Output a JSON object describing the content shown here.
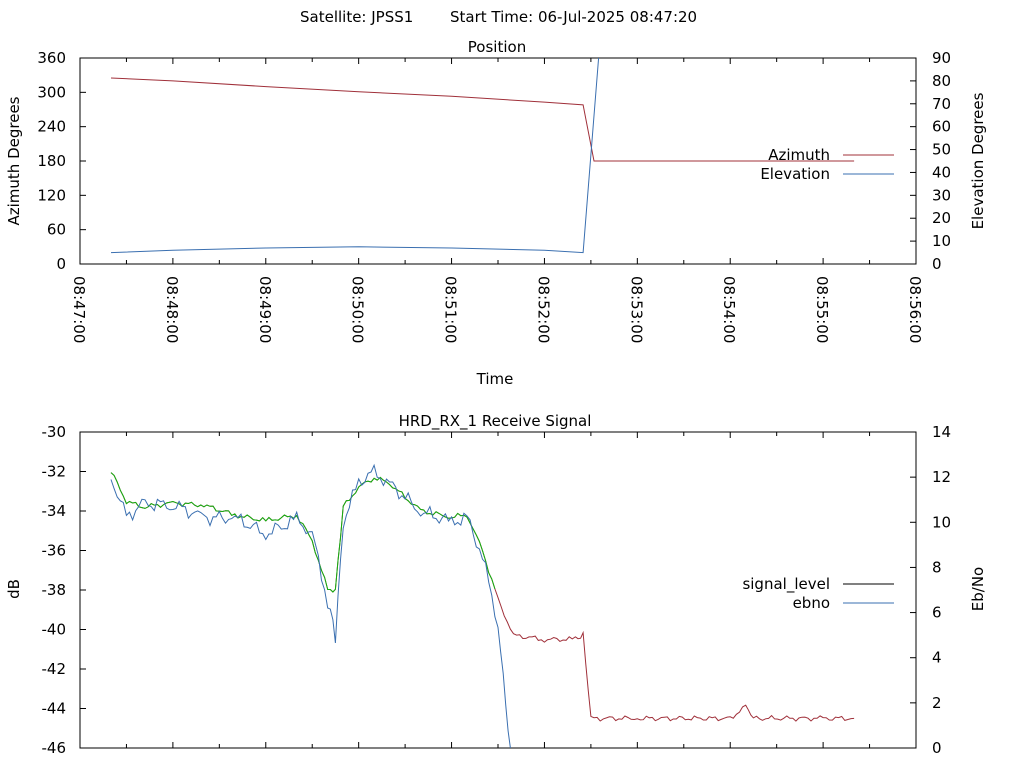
{
  "header": {
    "satellite_label": "Satellite: JPSS1",
    "start_label": "Start Time: 06-Jul-2025 08:47:20"
  },
  "colors": {
    "azimuth": "#a0303a",
    "elevation": "#3a6fb0",
    "signal_level": "#000000",
    "ebno": "#3a6fb0",
    "signal_drawn_green": "#10b010",
    "signal_drawn_red": "#a0303a"
  },
  "chart_data": [
    {
      "type": "line",
      "title": "Position",
      "xlabel": "Time",
      "ylabel": "Azimuth Degrees",
      "y2label": "Elevation Degrees",
      "xlim": [
        "08:47:00",
        "08:56:00"
      ],
      "ylim": [
        0,
        360
      ],
      "y2lim": [
        0,
        90
      ],
      "x_ticks": [
        "08:47:00",
        "08:48:00",
        "08:49:00",
        "08:50:00",
        "08:51:00",
        "08:52:00",
        "08:53:00",
        "08:54:00",
        "08:55:00",
        "08:56:00"
      ],
      "y_ticks": [
        0,
        60,
        120,
        180,
        240,
        300,
        360
      ],
      "y2_ticks": [
        0,
        10,
        20,
        30,
        40,
        50,
        60,
        70,
        80,
        90
      ],
      "legend_position": "right",
      "grid": false,
      "series": [
        {
          "name": "Azimuth",
          "axis": "y",
          "points": [
            [
              "08:47:20",
              325
            ],
            [
              "08:48:00",
              320
            ],
            [
              "08:49:00",
              310
            ],
            [
              "08:50:00",
              301
            ],
            [
              "08:51:00",
              293
            ],
            [
              "08:52:00",
              283
            ],
            [
              "08:52:25",
              278
            ],
            [
              "08:52:32",
              180
            ],
            [
              "08:55:20",
              180
            ]
          ]
        },
        {
          "name": "Elevation",
          "axis": "y2",
          "points": [
            [
              "08:47:20",
              5
            ],
            [
              "08:48:00",
              6
            ],
            [
              "08:49:00",
              7
            ],
            [
              "08:50:00",
              7.5
            ],
            [
              "08:51:00",
              7
            ],
            [
              "08:52:00",
              6
            ],
            [
              "08:52:25",
              5
            ],
            [
              "08:52:35",
              90
            ]
          ]
        }
      ]
    },
    {
      "type": "line",
      "title": "HRD_RX_1 Receive Signal",
      "ylabel": "dB",
      "y2label": "Eb/No",
      "xlim": [
        "08:47:00",
        "08:56:00"
      ],
      "ylim": [
        -46,
        -30
      ],
      "y2lim": [
        0,
        14
      ],
      "y_ticks": [
        -46,
        -44,
        -42,
        -40,
        -38,
        -36,
        -34,
        -32,
        -30
      ],
      "y2_ticks": [
        0,
        2,
        4,
        6,
        8,
        10,
        12,
        14
      ],
      "legend_position": "right",
      "grid": false,
      "series": [
        {
          "name": "signal_level",
          "axis": "y",
          "points": [
            [
              "08:47:20",
              -32
            ],
            [
              "08:47:30",
              -33.5
            ],
            [
              "08:47:40",
              -33.8
            ],
            [
              "08:48:00",
              -33.6
            ],
            [
              "08:48:20",
              -33.7
            ],
            [
              "08:48:40",
              -34.2
            ],
            [
              "08:49:00",
              -34.5
            ],
            [
              "08:49:20",
              -34.2
            ],
            [
              "08:49:30",
              -35.5
            ],
            [
              "08:49:40",
              -38
            ],
            [
              "08:49:45",
              -38
            ],
            [
              "08:49:50",
              -33.8
            ],
            [
              "08:50:00",
              -32.8
            ],
            [
              "08:50:10",
              -32.3
            ],
            [
              "08:50:20",
              -32.6
            ],
            [
              "08:50:40",
              -34
            ],
            [
              "08:51:00",
              -34.3
            ],
            [
              "08:51:10",
              -34.2
            ],
            [
              "08:51:20",
              -36
            ],
            [
              "08:51:30",
              -38.5
            ],
            [
              "08:51:40",
              -40.3
            ],
            [
              "08:52:00",
              -40.5
            ],
            [
              "08:52:20",
              -40.5
            ],
            [
              "08:52:25",
              -40.3
            ],
            [
              "08:52:30",
              -44.5
            ],
            [
              "08:53:00",
              -44.5
            ],
            [
              "08:54:00",
              -44.5
            ],
            [
              "08:54:10",
              -43.9
            ],
            [
              "08:54:15",
              -44.5
            ],
            [
              "08:55:00",
              -44.5
            ],
            [
              "08:55:20",
              -44.5
            ]
          ]
        },
        {
          "name": "ebno",
          "axis": "y2",
          "points": [
            [
              "08:47:20",
              12
            ],
            [
              "08:47:30",
              10.2
            ],
            [
              "08:47:40",
              10.8
            ],
            [
              "08:48:00",
              10.8
            ],
            [
              "08:48:20",
              10.2
            ],
            [
              "08:48:40",
              10.2
            ],
            [
              "08:49:00",
              9.5
            ],
            [
              "08:49:20",
              10.1
            ],
            [
              "08:49:30",
              9.5
            ],
            [
              "08:49:40",
              6.5
            ],
            [
              "08:49:45",
              5
            ],
            [
              "08:49:50",
              10
            ],
            [
              "08:50:00",
              11.8
            ],
            [
              "08:50:10",
              12.2
            ],
            [
              "08:50:20",
              11.7
            ],
            [
              "08:50:40",
              10.5
            ],
            [
              "08:51:00",
              10
            ],
            [
              "08:51:10",
              10.2
            ],
            [
              "08:51:20",
              8.5
            ],
            [
              "08:51:30",
              5.5
            ],
            [
              "08:51:35",
              2
            ],
            [
              "08:51:38",
              0
            ]
          ]
        }
      ]
    }
  ]
}
